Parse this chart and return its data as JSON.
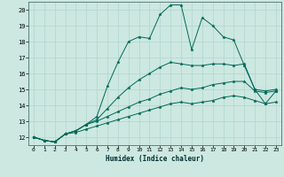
{
  "xlabel": "Humidex (Indice chaleur)",
  "xlim": [
    -0.5,
    23.5
  ],
  "ylim": [
    11.5,
    20.5
  ],
  "xticks": [
    0,
    1,
    2,
    3,
    4,
    5,
    6,
    7,
    8,
    9,
    10,
    11,
    12,
    13,
    14,
    15,
    16,
    17,
    18,
    19,
    20,
    21,
    22,
    23
  ],
  "yticks": [
    12,
    13,
    14,
    15,
    16,
    17,
    18,
    19,
    20
  ],
  "background_color": "#cce8e0",
  "grid_color": "#b0d4cc",
  "line_color": "#006858",
  "line1": [
    12.0,
    11.8,
    11.7,
    12.2,
    12.4,
    12.8,
    13.3,
    15.2,
    16.7,
    18.0,
    18.3,
    18.2,
    19.7,
    20.3,
    20.3,
    17.5,
    19.5,
    19.0,
    18.3,
    18.1,
    16.5,
    15.0,
    14.1,
    14.9
  ],
  "line2": [
    12.0,
    11.8,
    11.7,
    12.2,
    12.4,
    12.8,
    13.1,
    13.8,
    14.5,
    15.1,
    15.6,
    16.0,
    16.4,
    16.7,
    16.6,
    16.5,
    16.5,
    16.6,
    16.6,
    16.5,
    16.6,
    15.0,
    14.9,
    15.0
  ],
  "line3": [
    12.0,
    11.8,
    11.7,
    12.2,
    12.4,
    12.8,
    13.0,
    13.3,
    13.6,
    13.9,
    14.2,
    14.4,
    14.7,
    14.9,
    15.1,
    15.0,
    15.1,
    15.3,
    15.4,
    15.5,
    15.5,
    14.9,
    14.8,
    14.9
  ],
  "line4": [
    12.0,
    11.8,
    11.7,
    12.2,
    12.3,
    12.5,
    12.7,
    12.9,
    13.1,
    13.3,
    13.5,
    13.7,
    13.9,
    14.1,
    14.2,
    14.1,
    14.2,
    14.3,
    14.5,
    14.6,
    14.5,
    14.3,
    14.1,
    14.2
  ]
}
